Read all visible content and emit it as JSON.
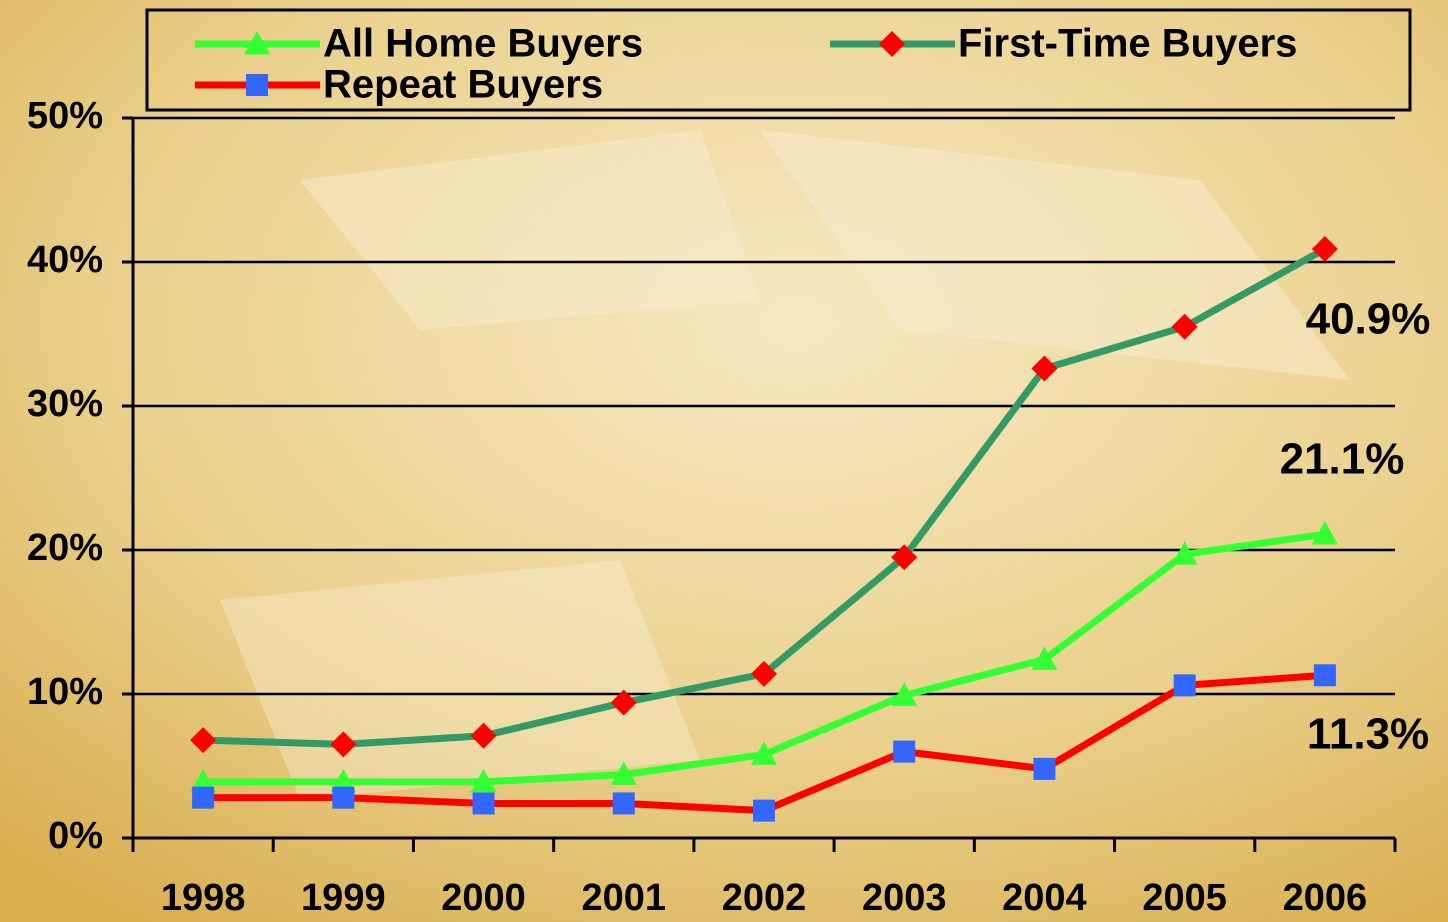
{
  "chart_data": {
    "type": "line",
    "categories": [
      "1998",
      "1999",
      "2000",
      "2001",
      "2002",
      "2003",
      "2004",
      "2005",
      "2006"
    ],
    "series": [
      {
        "name": "All Home Buyers",
        "color": "#33ff33",
        "marker": "triangle",
        "marker_color": "#33ff33",
        "values": [
          3.9,
          3.9,
          3.9,
          4.4,
          5.8,
          9.9,
          12.4,
          19.7,
          21.1
        ],
        "value_labels": [
          null,
          null,
          null,
          null,
          null,
          null,
          null,
          null,
          "21.1%"
        ]
      },
      {
        "name": "First-Time Buyers",
        "color": "#339966",
        "marker": "diamond",
        "marker_color": "#ff0000",
        "values": [
          6.8,
          6.5,
          7.1,
          9.4,
          11.4,
          19.5,
          32.6,
          35.5,
          40.9
        ],
        "value_labels": [
          null,
          null,
          null,
          null,
          null,
          null,
          null,
          null,
          "40.9%"
        ]
      },
      {
        "name": "Repeat Buyers",
        "color": "#ff0000",
        "marker": "square",
        "marker_color": "#3366ff",
        "values": [
          2.8,
          2.8,
          2.4,
          2.4,
          1.9,
          6.0,
          4.8,
          10.6,
          11.3
        ],
        "value_labels": [
          null,
          null,
          null,
          null,
          null,
          null,
          null,
          null,
          "11.3%"
        ]
      }
    ],
    "ylim": [
      0,
      50
    ],
    "yticks": [
      {
        "value": 0,
        "label": "0%"
      },
      {
        "value": 10,
        "label": "10%"
      },
      {
        "value": 20,
        "label": "20%"
      },
      {
        "value": 30,
        "label": "30%"
      },
      {
        "value": 40,
        "label": "40%"
      },
      {
        "value": 50,
        "label": "50%"
      }
    ],
    "grid": true
  }
}
